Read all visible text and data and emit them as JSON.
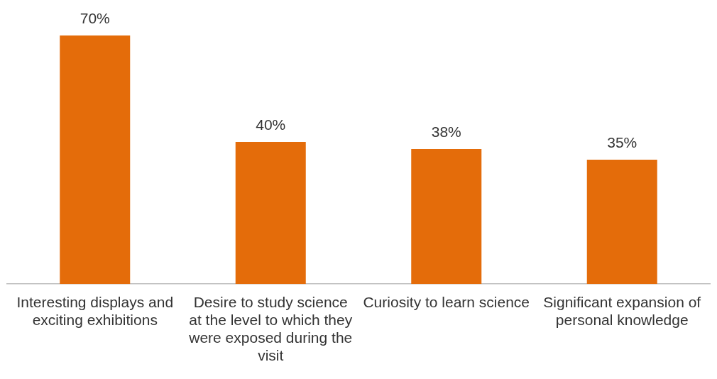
{
  "chart_data": {
    "type": "bar",
    "categories": [
      "Interesting displays and exciting exhibitions",
      "Desire to study science at the level to which they were exposed during the visit",
      "Curiosity to learn science",
      "Significant expansion of personal knowledge"
    ],
    "values": [
      70,
      40,
      38,
      35
    ],
    "value_labels": [
      "70%",
      "40%",
      "38%",
      "35%"
    ],
    "color": "#e46c0a",
    "grid": false,
    "legend": false
  }
}
